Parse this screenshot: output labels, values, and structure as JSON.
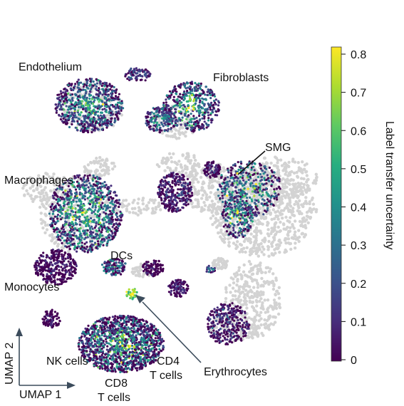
{
  "chart_data": {
    "type": "scatter",
    "title": "",
    "xlabel": "UMAP 1",
    "ylabel": "UMAP 2",
    "color_scale": {
      "label": "Label transfer uncertainty",
      "colormap": "viridis",
      "range": [
        0,
        0.8
      ],
      "ticks": [
        "0",
        "0.1",
        "0.2",
        "0.3",
        "0.4",
        "0.5",
        "0.6",
        "0.7",
        "0.8"
      ]
    },
    "unlabeled_color": "#d3d3d3",
    "cluster_labels": [
      "Endothelium",
      "Fibroblasts",
      "SMG",
      "Macrophages",
      "DCs",
      "Monocytes",
      "NK cells",
      "CD8\nT cells",
      "CD4\nT cells",
      "Erythrocytes"
    ],
    "legend_placement": "right",
    "grid": false
  }
}
